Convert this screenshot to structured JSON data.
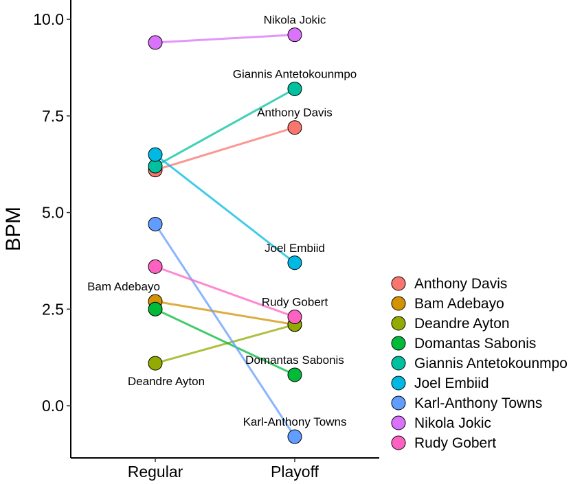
{
  "chart_data": {
    "type": "line",
    "title": "",
    "xlabel": "",
    "ylabel": "BPM",
    "categories": [
      "Regular",
      "Playoff"
    ],
    "ylim": [
      -1.35,
      10.5
    ],
    "yticks": [
      0.0,
      2.5,
      5.0,
      7.5,
      10.0
    ],
    "ytick_labels": [
      "0.0",
      "2.5",
      "5.0",
      "7.5",
      "10.0"
    ],
    "series": [
      {
        "name": "Anthony Davis",
        "color": "#F8766D",
        "values": [
          6.1,
          7.2
        ],
        "label": "Anthony Davis",
        "label_at": "Playoff"
      },
      {
        "name": "Bam Adebayo",
        "color": "#D39200",
        "values": [
          2.7,
          2.1
        ],
        "label": "Bam Adebayo",
        "label_at": "Regular"
      },
      {
        "name": "Deandre Ayton",
        "color": "#93AA00",
        "values": [
          1.1,
          2.1
        ],
        "label": "Deandre Ayton",
        "label_at": "Regular"
      },
      {
        "name": "Domantas Sabonis",
        "color": "#00BA38",
        "values": [
          2.5,
          0.8
        ],
        "label": "Domantas Sabonis",
        "label_at": "Playoff"
      },
      {
        "name": "Giannis Antetokounmpo",
        "color": "#00C19F",
        "values": [
          6.2,
          8.2
        ],
        "label": "Giannis Antetokounmpo",
        "label_at": "Playoff"
      },
      {
        "name": "Joel Embiid",
        "color": "#00B9E3",
        "values": [
          6.5,
          3.7
        ],
        "label": "Joel Embiid",
        "label_at": "Playoff"
      },
      {
        "name": "Karl-Anthony Towns",
        "color": "#619CFF",
        "values": [
          4.7,
          -0.8
        ],
        "label": "Karl-Anthony Towns",
        "label_at": "Playoff"
      },
      {
        "name": "Nikola Jokic",
        "color": "#DB72FB",
        "values": [
          9.4,
          9.6
        ],
        "label": "Nikola Jokic",
        "label_at": "Playoff"
      },
      {
        "name": "Rudy Gobert",
        "color": "#FF61C3",
        "values": [
          3.6,
          2.3
        ],
        "label": "Rudy Gobert",
        "label_at": "Playoff"
      }
    ],
    "legend": "right"
  }
}
